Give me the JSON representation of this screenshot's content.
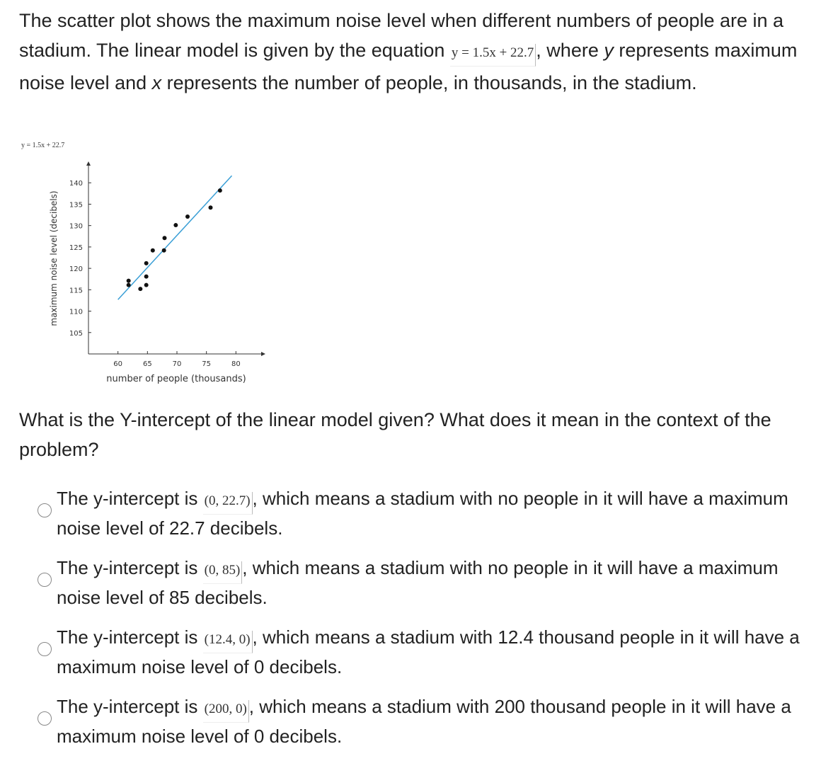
{
  "question1": [
    "The scatter plot shows the maximum noise level when different numbers of people are in a stadium. The linear model is given by the equation ",
    "y = 1.5x + 22.7",
    ", where ",
    "y",
    " represents maximum noise level and ",
    "x",
    " represents the number of people, in thousands, in the stadium."
  ],
  "chart_data": {
    "type": "scatter",
    "caption": "y = 1.5x + 22.7",
    "x_label": "number of people (thousands)",
    "y_label": "maximum noise level (decibels)",
    "x": [
      61.8,
      61.8,
      63.8,
      64.8,
      64.8,
      64.8,
      65.9,
      67.8,
      67.9,
      69.8,
      71.8,
      75.7,
      77.3
    ],
    "values": [
      117.1,
      116.1,
      115.2,
      116.1,
      118.1,
      121.2,
      124.2,
      124.2,
      127.1,
      130.1,
      132.1,
      134.2,
      138.2
    ],
    "color": "#111111",
    "trend": {
      "slope": 1.5,
      "intercept": 22.7,
      "x_range": [
        60,
        79.3
      ],
      "color": "#3a9fd6"
    },
    "xlim": [
      55,
      85
    ],
    "xticks": [
      60,
      65,
      70,
      75,
      80
    ],
    "ylim": [
      100,
      145
    ],
    "yticks": [
      105,
      110,
      115,
      120,
      125,
      130,
      135,
      140
    ]
  },
  "question2": "What is the Y-intercept of the linear model given? What does it mean in the context of the problem?",
  "options": [
    [
      "The y-intercept is ",
      "(0, 22.7)",
      ", which means a stadium with no people in it will have a maximum noise level of 22.7 decibels."
    ],
    [
      "The y-intercept is ",
      "(0, 85)",
      ", which means a stadium with no people in it will have a maximum noise level of 85 decibels."
    ],
    [
      "The y-intercept is ",
      "(12.4, 0)",
      ", which means a stadium with 12.4 thousand people in it will have a maximum noise level of 0 decibels."
    ],
    [
      "The y-intercept is ",
      "(200, 0)",
      ", which means a stadium with 200 thousand people in it will have a maximum noise level of 0 decibels."
    ]
  ]
}
